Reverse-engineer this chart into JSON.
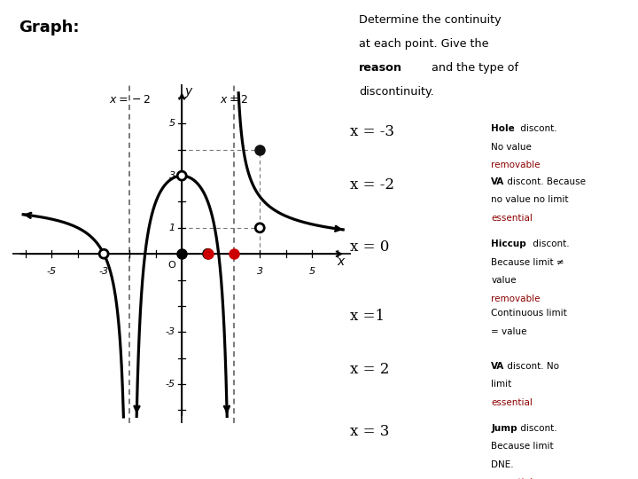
{
  "title": "Graph:",
  "bg_color": "#ffffff",
  "curve_color": "#000000",
  "red_dot_color": "#cc0000",
  "dashed_color": "#555555",
  "entries": [
    {
      "label": "x = -3",
      "desc_bold": "Hole",
      "desc_rest": " discont.\nNo value",
      "type_text": "removable",
      "type_color": "#8B0000"
    },
    {
      "label": "x = -2",
      "desc_bold": "VA",
      "desc_rest": " discont. Because\nno value no limit",
      "type_text": "essential",
      "type_color": "#8B0000"
    },
    {
      "label": "x = 0",
      "desc_bold": "Hiccup",
      "desc_rest": " discont.\nBecause limit ≠\nvalue",
      "type_text": "removable",
      "type_color": "#8B0000"
    },
    {
      "label": "x =1",
      "desc_bold": "",
      "desc_rest": "Continuous limit\n= value",
      "type_text": "",
      "type_color": "#000000"
    },
    {
      "label": "x = 2",
      "desc_bold": "VA",
      "desc_rest": " discont. No\nlimit",
      "type_text": "essential",
      "type_color": "#8B0000"
    },
    {
      "label": "x = 3",
      "desc_bold": "Jump",
      "desc_rest": " discont.\nBecause limit\nDNE.",
      "type_text": "essential",
      "type_color": "#8B0000"
    }
  ]
}
